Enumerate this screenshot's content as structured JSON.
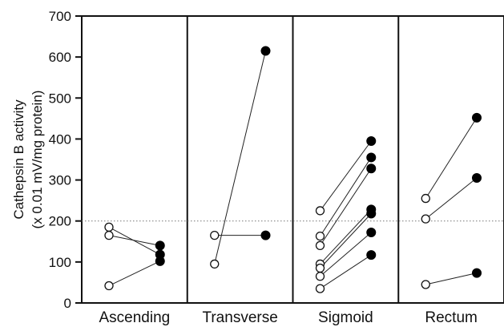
{
  "chart_data": {
    "type": "scatter",
    "title": "",
    "ylabel": [
      "Cathepsin B activity",
      "(x 0.01 mV/mg protein)"
    ],
    "xlabel": "",
    "ylim": [
      0,
      700
    ],
    "yticks": [
      0,
      100,
      200,
      300,
      400,
      500,
      600,
      700
    ],
    "reference_line": 200,
    "categories": [
      "Ascending",
      "Transverse",
      "Sigmoid",
      "Rectum"
    ],
    "legend": "none",
    "grid": false,
    "marker_open_color": "#ffffff",
    "marker_filled_color": "#000000",
    "pairs": [
      [
        [
          185,
          118
        ],
        [
          165,
          140
        ],
        [
          42,
          102
        ]
      ],
      [
        [
          165,
          165
        ],
        [
          95,
          615
        ]
      ],
      [
        [
          225,
          395
        ],
        [
          163,
          355
        ],
        [
          140,
          328
        ],
        [
          95,
          228
        ],
        [
          85,
          218
        ],
        [
          65,
          172
        ],
        [
          35,
          117
        ]
      ],
      [
        [
          255,
          452
        ],
        [
          205,
          305
        ],
        [
          45,
          73
        ]
      ]
    ]
  }
}
